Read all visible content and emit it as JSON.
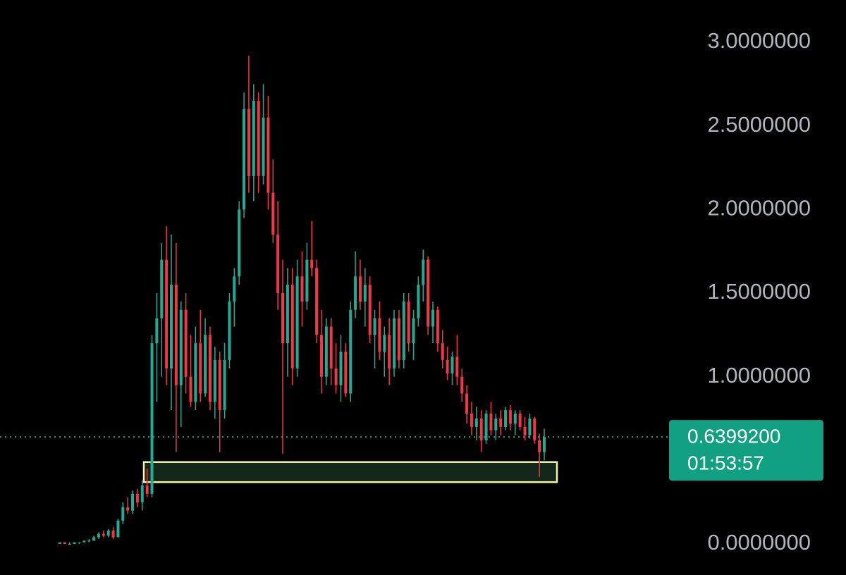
{
  "chart_data": {
    "type": "candlestick",
    "up_color": "#22ab94",
    "down_color": "#f23645",
    "ylim": [
      0,
      3
    ],
    "yticks": [
      {
        "value": 0,
        "label": "0.0000000"
      },
      {
        "value": 1,
        "label": "1.0000000"
      },
      {
        "value": 1.5,
        "label": "1.5000000"
      },
      {
        "value": 2,
        "label": "2.0000000"
      },
      {
        "value": 2.5,
        "label": "2.5000000"
      },
      {
        "value": 3,
        "label": "3.0000000"
      }
    ],
    "open": [
      0.0,
      0.01,
      0.0,
      0.0,
      0.01,
      0.01,
      0.02,
      0.02,
      0.04,
      0.06,
      0.05,
      0.08,
      0.04,
      0.14,
      0.22,
      0.2,
      0.3,
      0.25,
      0.35,
      0.3,
      1.2,
      1.35,
      1.7,
      1.05,
      1.55,
      0.95,
      1.4,
      1.0,
      0.85,
      1.2,
      0.9,
      1.25,
      0.85,
      1.1,
      0.8,
      1.1,
      1.45,
      1.6,
      2.0,
      2.6,
      2.2,
      2.65,
      2.2,
      2.55,
      2.1,
      1.85,
      1.5,
      1.2,
      1.55,
      1.05,
      1.6,
      1.45,
      1.7,
      1.65,
      1.25,
      1.0,
      1.3,
      1.05,
      0.95,
      1.15,
      0.9,
      1.4,
      1.6,
      1.45,
      1.55,
      1.25,
      1.35,
      1.15,
      1.25,
      1.05,
      1.35,
      1.1,
      1.45,
      1.2,
      1.35,
      1.55,
      1.7,
      1.3,
      1.4,
      1.2,
      1.1,
      1.02,
      1.12,
      1.0,
      0.9,
      0.78,
      0.7,
      0.75,
      0.62,
      0.78,
      0.68,
      0.75,
      0.7,
      0.8,
      0.72,
      0.78,
      0.7,
      0.65,
      0.75,
      0.62,
      0.55
    ],
    "high": [
      0.01,
      0.01,
      0.01,
      0.01,
      0.01,
      0.02,
      0.03,
      0.05,
      0.07,
      0.08,
      0.09,
      0.1,
      0.15,
      0.25,
      0.28,
      0.32,
      0.33,
      0.38,
      0.45,
      1.25,
      1.5,
      1.8,
      1.9,
      1.85,
      1.8,
      1.45,
      1.5,
      1.25,
      1.3,
      1.4,
      1.35,
      1.3,
      1.18,
      1.15,
      1.2,
      1.5,
      1.65,
      2.05,
      2.7,
      2.92,
      2.75,
      2.7,
      2.75,
      2.68,
      2.3,
      2.05,
      1.7,
      1.65,
      1.65,
      1.7,
      1.75,
      1.8,
      1.93,
      1.7,
      1.4,
      1.35,
      1.35,
      1.2,
      1.25,
      1.2,
      1.45,
      1.75,
      1.7,
      1.65,
      1.6,
      1.4,
      1.45,
      1.3,
      1.35,
      1.4,
      1.4,
      1.5,
      1.5,
      1.4,
      1.6,
      1.76,
      1.72,
      1.45,
      1.42,
      1.28,
      1.18,
      1.15,
      1.25,
      1.05,
      0.95,
      0.85,
      0.82,
      0.8,
      0.8,
      0.85,
      0.78,
      0.8,
      0.82,
      0.83,
      0.8,
      0.8,
      0.76,
      0.78,
      0.76,
      0.66,
      0.69
    ],
    "low": [
      0.0,
      0.0,
      0.0,
      0.0,
      0.0,
      0.01,
      0.01,
      0.02,
      0.03,
      0.04,
      0.04,
      0.03,
      0.04,
      0.12,
      0.18,
      0.18,
      0.22,
      0.2,
      0.28,
      0.28,
      0.85,
      1.0,
      0.95,
      0.8,
      0.55,
      0.7,
      0.9,
      0.82,
      0.8,
      0.85,
      0.88,
      0.8,
      0.75,
      0.55,
      0.75,
      1.05,
      1.3,
      1.55,
      1.95,
      2.1,
      2.05,
      2.1,
      2.15,
      2.0,
      1.8,
      1.4,
      0.54,
      1.0,
      0.95,
      1.0,
      1.3,
      1.4,
      1.6,
      1.2,
      0.9,
      0.95,
      0.95,
      0.9,
      0.85,
      0.88,
      0.85,
      1.35,
      1.4,
      1.3,
      1.2,
      1.05,
      1.1,
      1.0,
      0.95,
      1.0,
      1.05,
      1.05,
      1.15,
      1.1,
      1.3,
      1.45,
      1.25,
      1.2,
      1.15,
      1.05,
      0.98,
      0.95,
      0.95,
      0.85,
      0.72,
      0.65,
      0.62,
      0.55,
      0.6,
      0.65,
      0.62,
      0.65,
      0.68,
      0.68,
      0.65,
      0.68,
      0.62,
      0.63,
      0.6,
      0.4,
      0.5
    ],
    "close": [
      0.01,
      0.0,
      0.0,
      0.01,
      0.01,
      0.02,
      0.02,
      0.04,
      0.06,
      0.05,
      0.08,
      0.04,
      0.14,
      0.22,
      0.2,
      0.3,
      0.25,
      0.35,
      0.3,
      1.2,
      1.35,
      1.7,
      1.05,
      1.55,
      0.95,
      1.4,
      1.0,
      0.85,
      1.2,
      0.9,
      1.25,
      0.85,
      1.1,
      0.8,
      1.1,
      1.45,
      1.6,
      2.0,
      2.6,
      2.2,
      2.65,
      2.2,
      2.55,
      2.1,
      1.85,
      1.5,
      1.2,
      1.55,
      1.05,
      1.6,
      1.45,
      1.7,
      1.65,
      1.25,
      1.0,
      1.3,
      1.05,
      0.95,
      1.15,
      0.9,
      1.4,
      1.6,
      1.45,
      1.55,
      1.25,
      1.35,
      1.15,
      1.25,
      1.05,
      1.35,
      1.1,
      1.45,
      1.2,
      1.35,
      1.55,
      1.7,
      1.3,
      1.4,
      1.2,
      1.1,
      1.02,
      1.12,
      1.0,
      0.9,
      0.78,
      0.7,
      0.75,
      0.62,
      0.78,
      0.68,
      0.75,
      0.7,
      0.8,
      0.72,
      0.78,
      0.7,
      0.65,
      0.75,
      0.62,
      0.55,
      0.64
    ],
    "current_price": {
      "value": 0.63992,
      "label": "0.6399200",
      "countdown": "01:53:57",
      "color": "#12a083"
    },
    "zone": {
      "low": 0.37,
      "high": 0.49,
      "border": "#f4f4a8",
      "fill": "#14281a"
    }
  }
}
